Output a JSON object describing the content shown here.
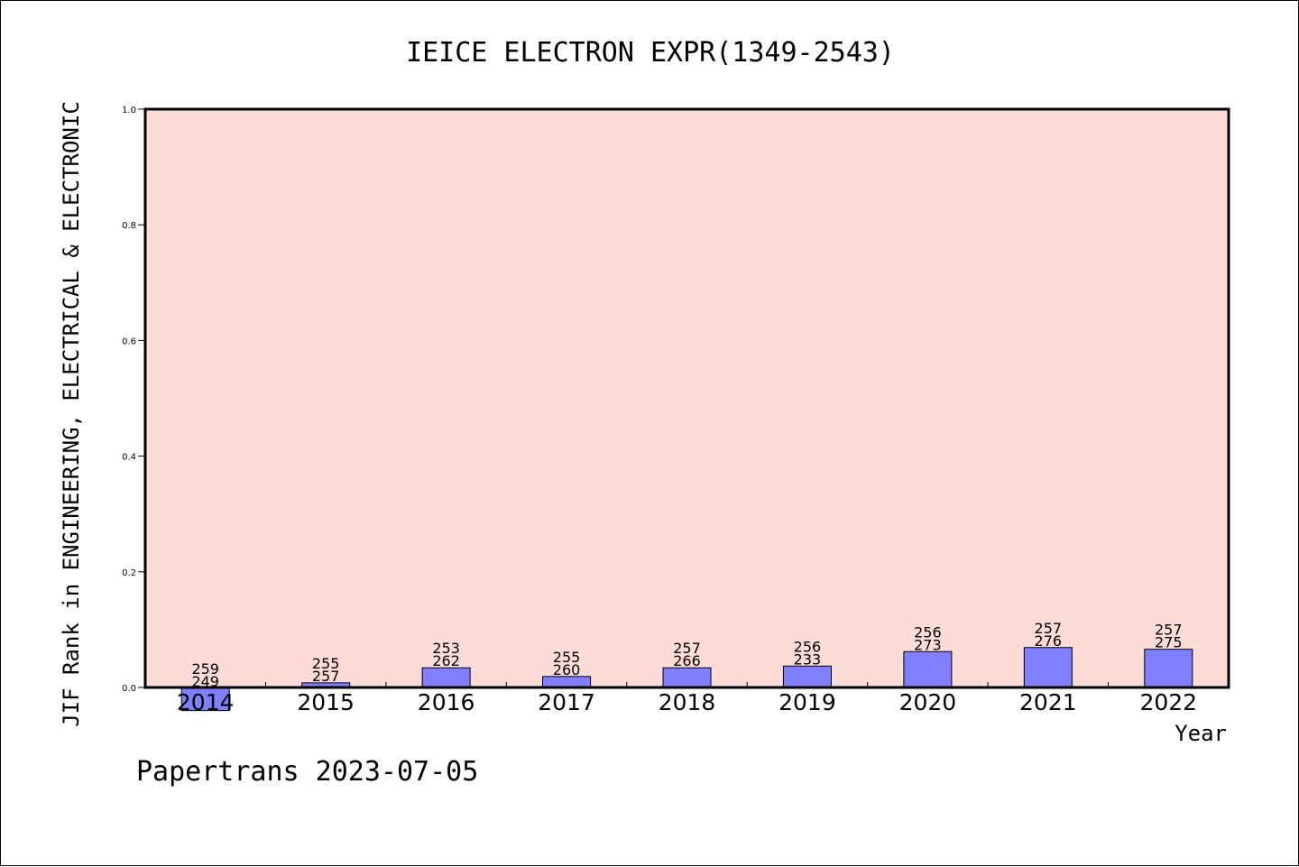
{
  "footer": "Papertrans 2023-07-05",
  "colors": {
    "plot_background": "#fddcd8",
    "bar_fill": "#8080ff",
    "bar_edge": "#000000",
    "axis": "#000000"
  },
  "chart_data": {
    "type": "bar",
    "title": "IEICE ELECTRON EXPR(1349-2543)",
    "xlabel": "Year",
    "ylabel": "JIF Rank in ENGINEERING, ELECTRICAL & ELECTRONIC",
    "ylim": [
      0.0,
      1.0
    ],
    "yticks": [
      "0.0",
      "0.2",
      "0.4",
      "0.6",
      "0.8",
      "1.0"
    ],
    "grid": false,
    "legend": "none",
    "categories": [
      "2014",
      "2015",
      "2016",
      "2017",
      "2018",
      "2019",
      "2020",
      "2021",
      "2022"
    ],
    "values": [
      -0.04,
      0.008,
      0.034,
      0.019,
      0.034,
      0.037,
      0.062,
      0.069,
      0.066
    ],
    "labels_top": [
      "259",
      "255",
      "253",
      "255",
      "257",
      "256",
      "256",
      "257",
      "257"
    ],
    "labels_bottom": [
      "249",
      "257",
      "262",
      "260",
      "266",
      "233",
      "273",
      "276",
      "275"
    ]
  }
}
